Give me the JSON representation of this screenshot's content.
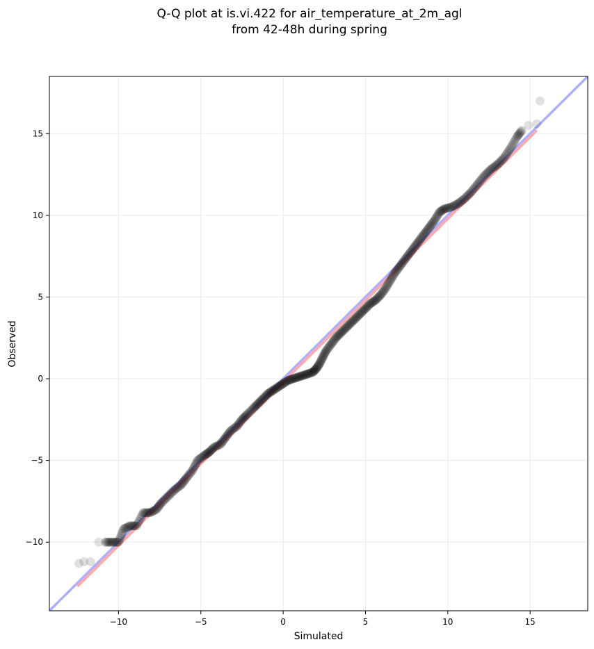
{
  "chart_data": {
    "type": "scatter",
    "title": [
      "Q-Q plot at is.vi.422 for air_temperature_at_2m_agl",
      "from 42-48h during spring"
    ],
    "xlabel": "Simulated",
    "ylabel": "Observed",
    "xlim": [
      -14.2,
      18.5
    ],
    "ylim": [
      -14.2,
      18.5
    ],
    "xticks": [
      -10,
      -5,
      0,
      5,
      10,
      15
    ],
    "yticks": [
      -10,
      -5,
      0,
      5,
      10,
      15
    ],
    "xtick_labels": [
      "−10",
      "−5",
      "0",
      "5",
      "10",
      "15"
    ],
    "ytick_labels": [
      "−10",
      "−5",
      "0",
      "5",
      "10",
      "15"
    ],
    "grid": true,
    "reference_line": {
      "name": "identity",
      "color": "#aab0ff",
      "from": [
        -14.2,
        -14.2
      ],
      "to": [
        18.5,
        18.5
      ]
    },
    "fit_line": {
      "name": "fit",
      "color": "#ffaaaa",
      "from": [
        -12.5,
        -12.7
      ],
      "to": [
        15.4,
        15.2
      ]
    },
    "marker_color": "#000000",
    "quantiles": [
      [
        -12.4,
        -11.3
      ],
      [
        -12.1,
        -11.2
      ],
      [
        -11.7,
        -11.2
      ],
      [
        -11.2,
        -10.0
      ],
      [
        -10.8,
        -10.0
      ],
      [
        -10.4,
        -10.0
      ],
      [
        -10.0,
        -10.0
      ],
      [
        -9.7,
        -9.2
      ],
      [
        -9.3,
        -9.0
      ],
      [
        -8.9,
        -9.0
      ],
      [
        -8.5,
        -8.2
      ],
      [
        -8.1,
        -8.2
      ],
      [
        -7.7,
        -8.0
      ],
      [
        -7.4,
        -7.6
      ],
      [
        -7.0,
        -7.2
      ],
      [
        -6.6,
        -6.8
      ],
      [
        -6.2,
        -6.5
      ],
      [
        -5.9,
        -6.1
      ],
      [
        -5.5,
        -5.6
      ],
      [
        -5.2,
        -5.0
      ],
      [
        -4.8,
        -4.7
      ],
      [
        -4.5,
        -4.5
      ],
      [
        -4.2,
        -4.2
      ],
      [
        -3.8,
        -4.0
      ],
      [
        -3.5,
        -3.6
      ],
      [
        -3.2,
        -3.2
      ],
      [
        -2.8,
        -2.9
      ],
      [
        -2.5,
        -2.5
      ],
      [
        -2.2,
        -2.2
      ],
      [
        -1.8,
        -1.8
      ],
      [
        -1.5,
        -1.5
      ],
      [
        -1.2,
        -1.2
      ],
      [
        -0.9,
        -0.9
      ],
      [
        -0.6,
        -0.7
      ],
      [
        -0.3,
        -0.5
      ],
      [
        0.0,
        -0.3
      ],
      [
        0.3,
        -0.1
      ],
      [
        0.6,
        0.0
      ],
      [
        0.9,
        0.1
      ],
      [
        1.2,
        0.2
      ],
      [
        1.5,
        0.3
      ],
      [
        1.8,
        0.4
      ],
      [
        2.0,
        0.6
      ],
      [
        2.2,
        0.9
      ],
      [
        2.4,
        1.3
      ],
      [
        2.6,
        1.7
      ],
      [
        2.9,
        2.1
      ],
      [
        3.2,
        2.5
      ],
      [
        3.5,
        2.8
      ],
      [
        3.8,
        3.1
      ],
      [
        4.1,
        3.4
      ],
      [
        4.4,
        3.7
      ],
      [
        4.7,
        4.0
      ],
      [
        5.0,
        4.3
      ],
      [
        5.3,
        4.6
      ],
      [
        5.6,
        4.8
      ],
      [
        5.9,
        5.1
      ],
      [
        6.2,
        5.5
      ],
      [
        6.5,
        6.0
      ],
      [
        6.8,
        6.5
      ],
      [
        7.1,
        6.9
      ],
      [
        7.4,
        7.3
      ],
      [
        7.7,
        7.7
      ],
      [
        8.0,
        8.1
      ],
      [
        8.3,
        8.5
      ],
      [
        8.6,
        8.9
      ],
      [
        8.9,
        9.3
      ],
      [
        9.2,
        9.7
      ],
      [
        9.5,
        10.2
      ],
      [
        9.8,
        10.4
      ],
      [
        10.2,
        10.5
      ],
      [
        10.6,
        10.7
      ],
      [
        11.0,
        11.0
      ],
      [
        11.4,
        11.4
      ],
      [
        11.8,
        11.9
      ],
      [
        12.2,
        12.4
      ],
      [
        12.6,
        12.8
      ],
      [
        13.0,
        13.1
      ],
      [
        13.4,
        13.5
      ],
      [
        13.8,
        14.1
      ],
      [
        14.2,
        14.8
      ],
      [
        14.5,
        15.2
      ],
      [
        14.9,
        15.5
      ],
      [
        15.4,
        15.6
      ],
      [
        15.6,
        17.0
      ]
    ]
  }
}
